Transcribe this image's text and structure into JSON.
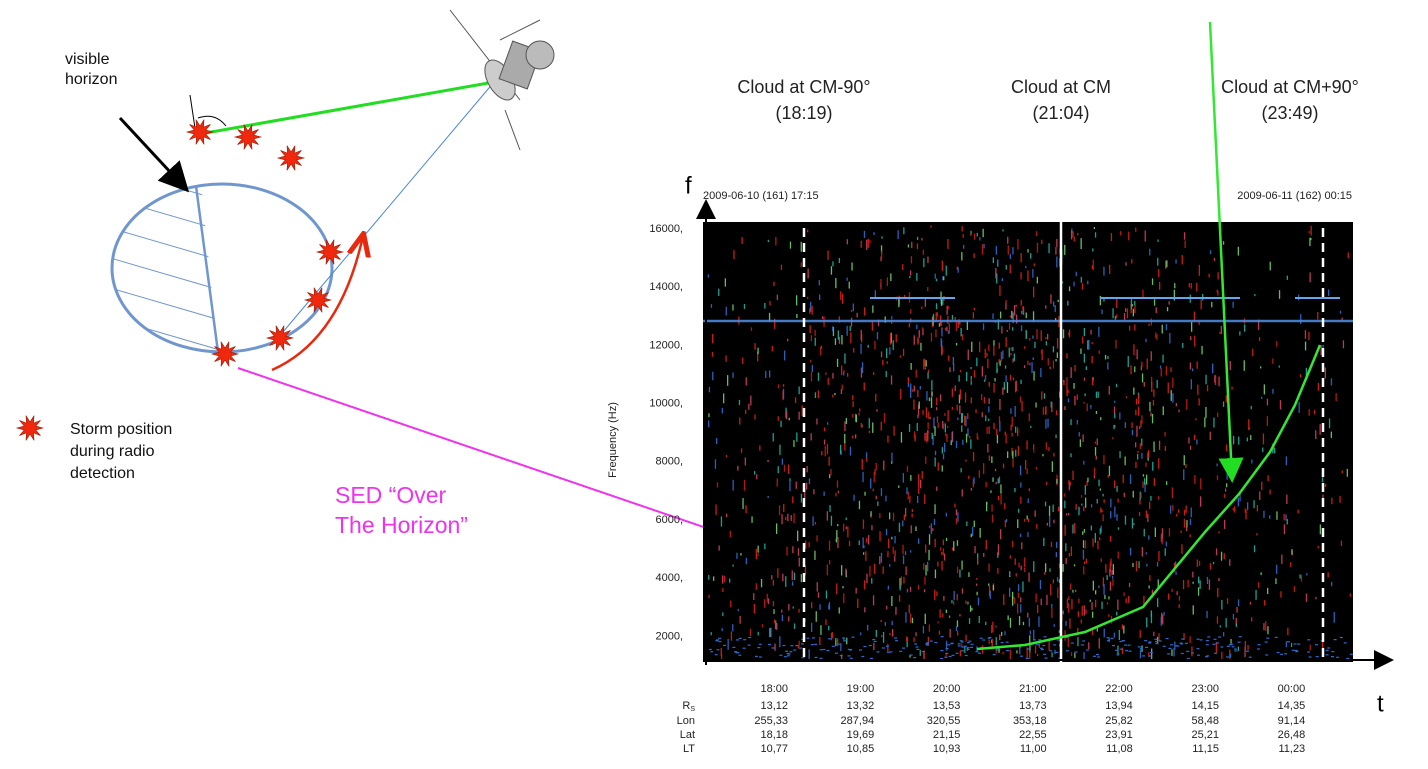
{
  "left_diagram": {
    "visible_horizon_label": [
      "visible",
      "horizon"
    ],
    "legend_label": [
      "Storm position",
      "during radio",
      "detection"
    ]
  },
  "annotation": [
    "SED “Over",
    "The Horizon”"
  ],
  "spectrogram": {
    "cloud_labels": [
      {
        "title": "Cloud at CM-90°",
        "time": "(18:19)"
      },
      {
        "title": "Cloud at CM",
        "time": "(21:04)"
      },
      {
        "title": "Cloud at CM+90°",
        "time": "(23:49)"
      }
    ],
    "axis_f": "f",
    "axis_t": "t",
    "start_label": "2009-06-10 (161) 17:15",
    "end_label": "2009-06-11 (162) 00:15",
    "y_axis_title": "Frequency (Hz)",
    "yticks": [
      "16000,",
      "14000,",
      "12000,",
      "10000,",
      "8000,",
      "6000,",
      "4000,",
      "2000,"
    ],
    "time_ticks": [
      "18:00",
      "19:00",
      "20:00",
      "21:00",
      "22:00",
      "23:00",
      "00:00"
    ],
    "ephemeris": {
      "row_labels": [
        {
          "main": "R",
          "sub": "S"
        },
        {
          "main": "Lon"
        },
        {
          "main": "Lat"
        },
        {
          "main": "LT"
        }
      ],
      "rows": [
        [
          "13,12",
          "13,32",
          "13,53",
          "13,73",
          "13,94",
          "14,15",
          "14,35"
        ],
        [
          "255,33",
          "287,94",
          "320,55",
          "353,18",
          "25,82",
          "58,48",
          "91,14"
        ],
        [
          "18,18",
          "19,69",
          "21,15",
          "22,55",
          "23,91",
          "25,21",
          "26,48"
        ],
        [
          "10,77",
          "10,85",
          "10,93",
          "11,00",
          "11,08",
          "11,15",
          "11,23"
        ]
      ]
    }
  }
}
